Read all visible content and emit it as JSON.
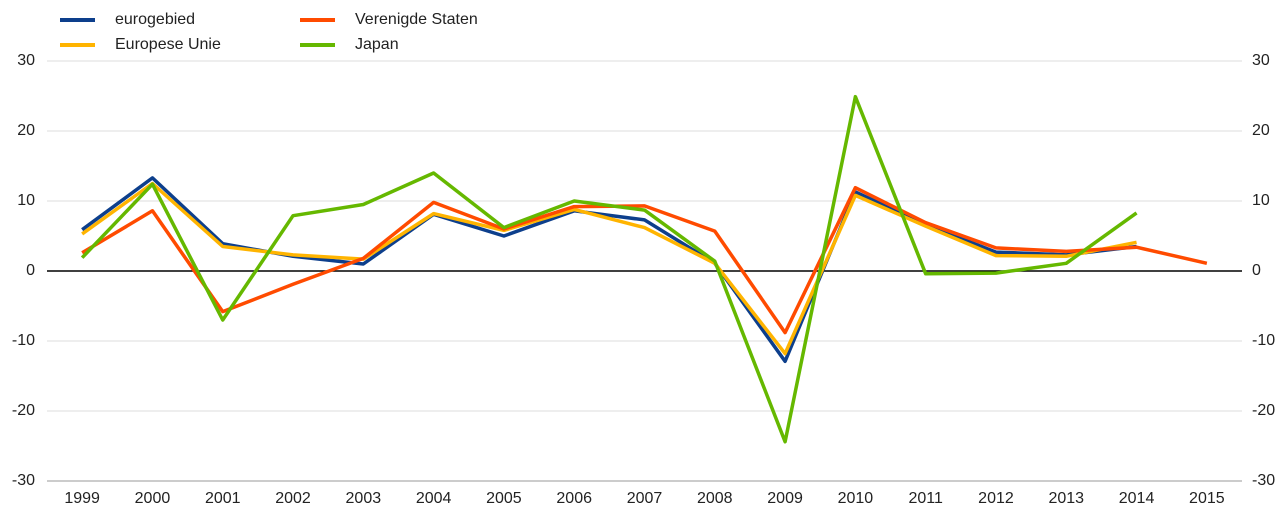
{
  "chart_data": {
    "type": "line",
    "categories": [
      "1999",
      "2000",
      "2001",
      "2002",
      "2003",
      "2004",
      "2005",
      "2006",
      "2007",
      "2008",
      "2009",
      "2010",
      "2011",
      "2012",
      "2013",
      "2014",
      "2015"
    ],
    "series": [
      {
        "name": "eurogebied",
        "color": "#0d3f8c",
        "values": [
          5.9,
          13.3,
          3.9,
          2.1,
          1.0,
          8.1,
          5.0,
          8.6,
          7.3,
          1.1,
          -12.9,
          11.3,
          6.6,
          2.7,
          2.3,
          3.5,
          null
        ]
      },
      {
        "name": "Europese Unie",
        "color": "#ffb400",
        "values": [
          5.3,
          12.5,
          3.5,
          2.3,
          1.7,
          8.2,
          5.8,
          8.8,
          6.2,
          1.1,
          -11.8,
          10.8,
          6.4,
          2.2,
          2.1,
          4.1,
          null
        ]
      },
      {
        "name": "Verenigde Staten",
        "color": "#ff4b00",
        "values": [
          2.6,
          8.6,
          -5.8,
          -1.9,
          1.8,
          9.8,
          6.0,
          9.2,
          9.3,
          5.7,
          -8.8,
          11.9,
          6.9,
          3.3,
          2.8,
          3.4,
          1.1
        ]
      },
      {
        "name": "Japan",
        "color": "#65b800",
        "values": [
          1.9,
          12.4,
          -7.0,
          7.9,
          9.5,
          14.0,
          6.2,
          10.0,
          8.7,
          1.4,
          -24.4,
          24.9,
          -0.4,
          -0.3,
          1.1,
          8.3,
          null
        ]
      }
    ],
    "ylim": [
      -30,
      30
    ],
    "yticks": [
      -30,
      -20,
      -10,
      0,
      10,
      20,
      30
    ],
    "y2lim": [
      -30,
      30
    ],
    "y2ticks": [
      -30,
      -20,
      -10,
      0,
      10,
      20,
      30
    ],
    "grid": true
  }
}
